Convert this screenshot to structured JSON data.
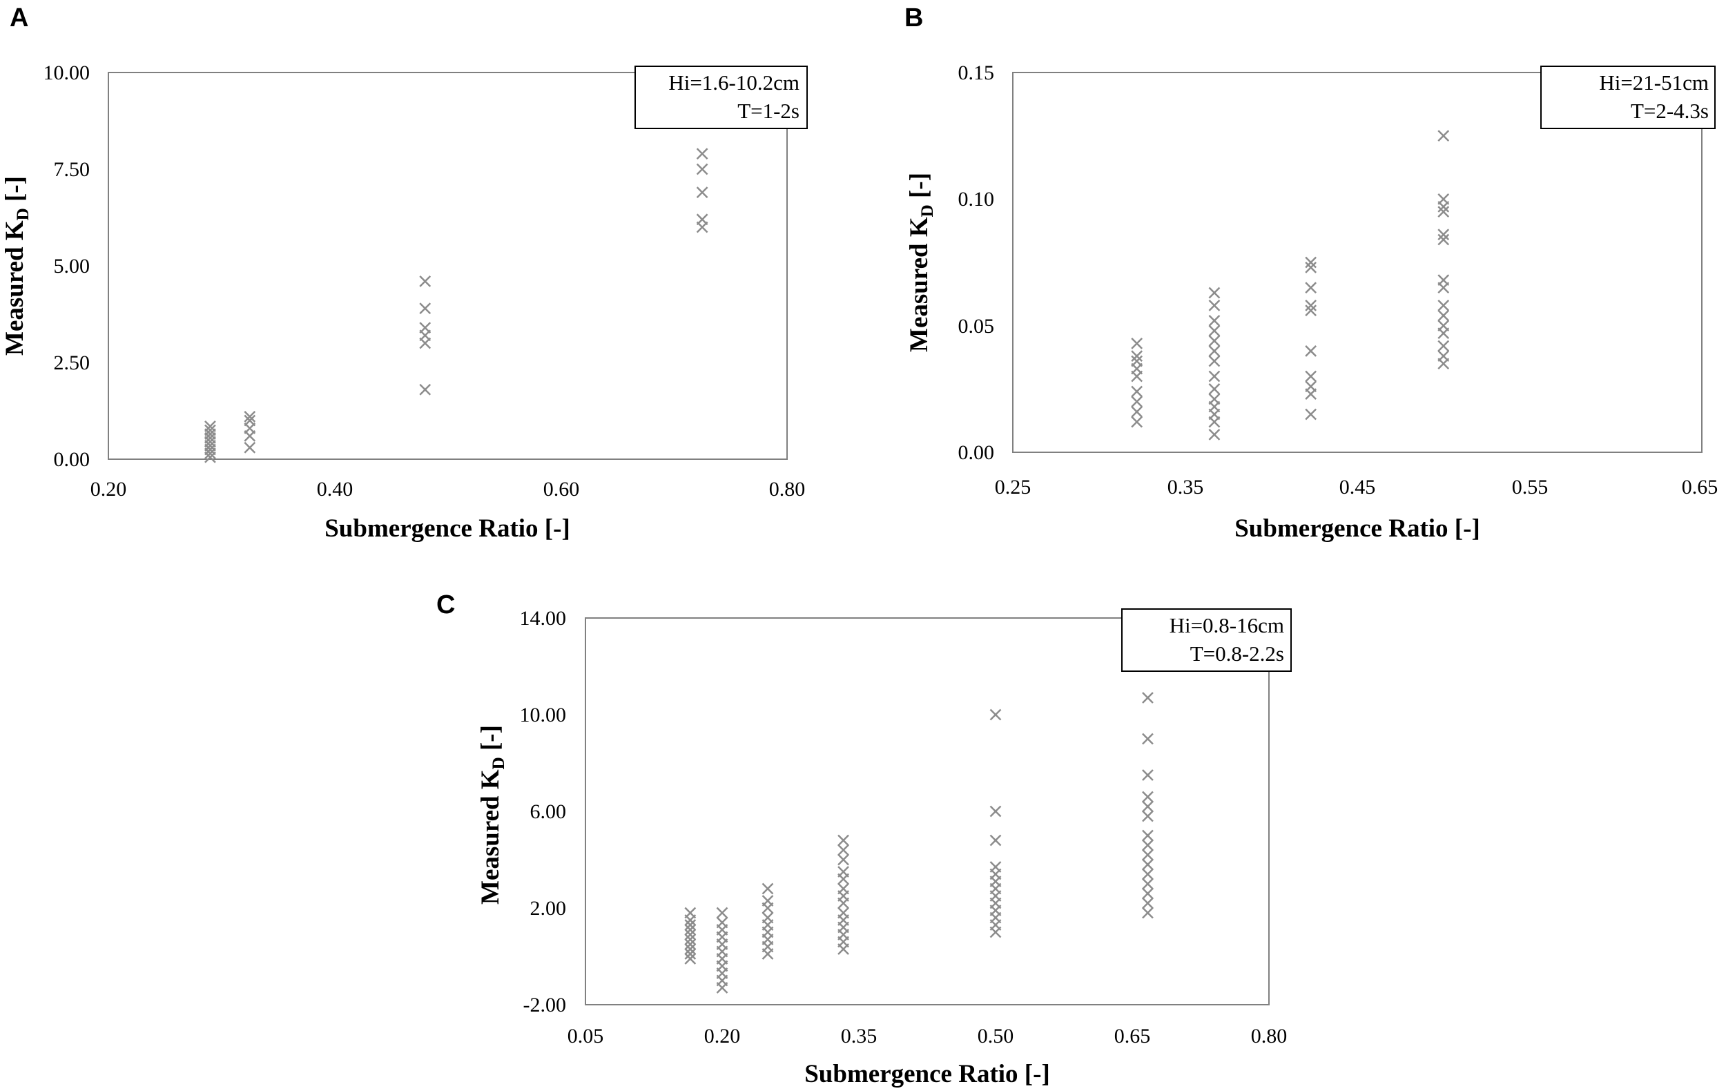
{
  "chart_data": [
    {
      "type": "scatter",
      "panel_label": "A",
      "legend_lines": [
        "Hi=1.6-10.2cm",
        "T=1-2s"
      ],
      "legend_placement": "top-right",
      "xlabel": "Submergence Ratio [-]",
      "ylabel_main": "Measured K",
      "ylabel_sub": "D",
      "ylabel_tail": " [-]",
      "xlim": [
        0.2,
        0.8
      ],
      "ylim": [
        0,
        10
      ],
      "xticks": [
        0.2,
        0.4,
        0.6,
        0.8
      ],
      "xtick_labels": [
        "0.20",
        "0.40",
        "0.60",
        "0.80"
      ],
      "yticks": [
        0,
        2.5,
        5,
        7.5,
        10
      ],
      "ytick_labels": [
        "0.00",
        "2.50",
        "5.00",
        "7.50",
        "10.00"
      ],
      "grid": false,
      "marker": "x",
      "marker_color": "#8c8c8c",
      "points": [
        [
          0.29,
          0.05
        ],
        [
          0.29,
          0.15
        ],
        [
          0.29,
          0.25
        ],
        [
          0.29,
          0.35
        ],
        [
          0.29,
          0.45
        ],
        [
          0.29,
          0.55
        ],
        [
          0.29,
          0.65
        ],
        [
          0.29,
          0.75
        ],
        [
          0.29,
          0.85
        ],
        [
          0.325,
          0.3
        ],
        [
          0.325,
          0.6
        ],
        [
          0.325,
          0.8
        ],
        [
          0.325,
          1.0
        ],
        [
          0.325,
          1.1
        ],
        [
          0.48,
          1.8
        ],
        [
          0.48,
          3.0
        ],
        [
          0.48,
          3.2
        ],
        [
          0.48,
          3.4
        ],
        [
          0.48,
          3.9
        ],
        [
          0.48,
          4.6
        ],
        [
          0.725,
          6.0
        ],
        [
          0.725,
          6.2
        ],
        [
          0.725,
          6.9
        ],
        [
          0.725,
          7.5
        ],
        [
          0.725,
          7.9
        ]
      ]
    },
    {
      "type": "scatter",
      "panel_label": "B",
      "legend_lines": [
        "Hi=21-51cm",
        "T=2-4.3s"
      ],
      "legend_placement": "top-right",
      "xlabel": "Submergence Ratio [-]",
      "ylabel_main": "Measured K",
      "ylabel_sub": "D",
      "ylabel_tail": " [-]",
      "xlim": [
        0.25,
        0.65
      ],
      "ylim": [
        0,
        0.15
      ],
      "xticks": [
        0.25,
        0.35,
        0.45,
        0.55,
        0.65
      ],
      "xtick_labels": [
        "0.25",
        "0.35",
        "0.45",
        "0.55",
        "0.65"
      ],
      "yticks": [
        0,
        0.05,
        0.1,
        0.15
      ],
      "ytick_labels": [
        "0.00",
        "0.05",
        "0.10",
        "0.15"
      ],
      "grid": false,
      "marker": "x",
      "marker_color": "#8c8c8c",
      "points": [
        [
          0.322,
          0.012
        ],
        [
          0.322,
          0.016
        ],
        [
          0.322,
          0.02
        ],
        [
          0.322,
          0.024
        ],
        [
          0.322,
          0.03
        ],
        [
          0.322,
          0.033
        ],
        [
          0.322,
          0.036
        ],
        [
          0.322,
          0.038
        ],
        [
          0.322,
          0.043
        ],
        [
          0.367,
          0.007
        ],
        [
          0.367,
          0.012
        ],
        [
          0.367,
          0.015
        ],
        [
          0.367,
          0.018
        ],
        [
          0.367,
          0.021
        ],
        [
          0.367,
          0.025
        ],
        [
          0.367,
          0.03
        ],
        [
          0.367,
          0.036
        ],
        [
          0.367,
          0.04
        ],
        [
          0.367,
          0.044
        ],
        [
          0.367,
          0.048
        ],
        [
          0.367,
          0.052
        ],
        [
          0.367,
          0.058
        ],
        [
          0.367,
          0.063
        ],
        [
          0.423,
          0.015
        ],
        [
          0.423,
          0.023
        ],
        [
          0.423,
          0.026
        ],
        [
          0.423,
          0.03
        ],
        [
          0.423,
          0.04
        ],
        [
          0.423,
          0.056
        ],
        [
          0.423,
          0.058
        ],
        [
          0.423,
          0.065
        ],
        [
          0.423,
          0.073
        ],
        [
          0.423,
          0.075
        ],
        [
          0.5,
          0.035
        ],
        [
          0.5,
          0.038
        ],
        [
          0.5,
          0.042
        ],
        [
          0.5,
          0.047
        ],
        [
          0.5,
          0.05
        ],
        [
          0.5,
          0.054
        ],
        [
          0.5,
          0.058
        ],
        [
          0.5,
          0.065
        ],
        [
          0.5,
          0.068
        ],
        [
          0.5,
          0.084
        ],
        [
          0.5,
          0.086
        ],
        [
          0.5,
          0.095
        ],
        [
          0.5,
          0.097
        ],
        [
          0.5,
          0.1
        ],
        [
          0.5,
          0.125
        ]
      ]
    },
    {
      "type": "scatter",
      "panel_label": "C",
      "legend_lines": [
        "Hi=0.8-16cm",
        "T=0.8-2.2s"
      ],
      "legend_placement": "top-right",
      "xlabel": "Submergence Ratio [-]",
      "ylabel_main": "Measured K",
      "ylabel_sub": "D",
      "ylabel_tail": " [-]",
      "xlim": [
        0.05,
        0.8
      ],
      "ylim": [
        -2,
        14
      ],
      "xticks": [
        0.05,
        0.2,
        0.35,
        0.5,
        0.65,
        0.8
      ],
      "xtick_labels": [
        "0.05",
        "0.20",
        "0.35",
        "0.50",
        "0.65",
        "0.80"
      ],
      "yticks": [
        -2,
        2,
        6,
        10,
        14
      ],
      "ytick_labels": [
        "-2.00",
        "2.00",
        "6.00",
        "10.00",
        "14.00"
      ],
      "grid": false,
      "marker": "x",
      "marker_color": "#8c8c8c",
      "points": [
        [
          0.165,
          -0.1
        ],
        [
          0.165,
          0.1
        ],
        [
          0.165,
          0.3
        ],
        [
          0.165,
          0.5
        ],
        [
          0.165,
          0.7
        ],
        [
          0.165,
          0.9
        ],
        [
          0.165,
          1.1
        ],
        [
          0.165,
          1.3
        ],
        [
          0.165,
          1.5
        ],
        [
          0.165,
          1.8
        ],
        [
          0.2,
          -1.3
        ],
        [
          0.2,
          -1.0
        ],
        [
          0.2,
          -0.7
        ],
        [
          0.2,
          -0.4
        ],
        [
          0.2,
          -0.1
        ],
        [
          0.2,
          0.2
        ],
        [
          0.2,
          0.5
        ],
        [
          0.2,
          0.8
        ],
        [
          0.2,
          1.1
        ],
        [
          0.2,
          1.4
        ],
        [
          0.2,
          1.8
        ],
        [
          0.25,
          0.1
        ],
        [
          0.25,
          0.4
        ],
        [
          0.25,
          0.7
        ],
        [
          0.25,
          1.0
        ],
        [
          0.25,
          1.3
        ],
        [
          0.25,
          1.6
        ],
        [
          0.25,
          2.0
        ],
        [
          0.25,
          2.3
        ],
        [
          0.25,
          2.8
        ],
        [
          0.333,
          0.3
        ],
        [
          0.333,
          0.6
        ],
        [
          0.333,
          0.9
        ],
        [
          0.333,
          1.2
        ],
        [
          0.333,
          1.5
        ],
        [
          0.333,
          1.8
        ],
        [
          0.333,
          2.2
        ],
        [
          0.333,
          2.5
        ],
        [
          0.333,
          2.8
        ],
        [
          0.333,
          3.2
        ],
        [
          0.333,
          3.5
        ],
        [
          0.333,
          4.0
        ],
        [
          0.333,
          4.4
        ],
        [
          0.333,
          4.8
        ],
        [
          0.5,
          1.0
        ],
        [
          0.5,
          1.3
        ],
        [
          0.5,
          1.6
        ],
        [
          0.5,
          1.9
        ],
        [
          0.5,
          2.2
        ],
        [
          0.5,
          2.5
        ],
        [
          0.5,
          2.8
        ],
        [
          0.5,
          3.1
        ],
        [
          0.5,
          3.4
        ],
        [
          0.5,
          3.7
        ],
        [
          0.5,
          4.8
        ],
        [
          0.5,
          6.0
        ],
        [
          0.5,
          10.0
        ],
        [
          0.667,
          1.8
        ],
        [
          0.667,
          2.2
        ],
        [
          0.667,
          2.6
        ],
        [
          0.667,
          3.0
        ],
        [
          0.667,
          3.4
        ],
        [
          0.667,
          3.8
        ],
        [
          0.667,
          4.2
        ],
        [
          0.667,
          4.6
        ],
        [
          0.667,
          5.0
        ],
        [
          0.667,
          5.8
        ],
        [
          0.667,
          6.2
        ],
        [
          0.667,
          6.6
        ],
        [
          0.667,
          7.5
        ],
        [
          0.667,
          9.0
        ],
        [
          0.667,
          10.7
        ]
      ]
    }
  ]
}
